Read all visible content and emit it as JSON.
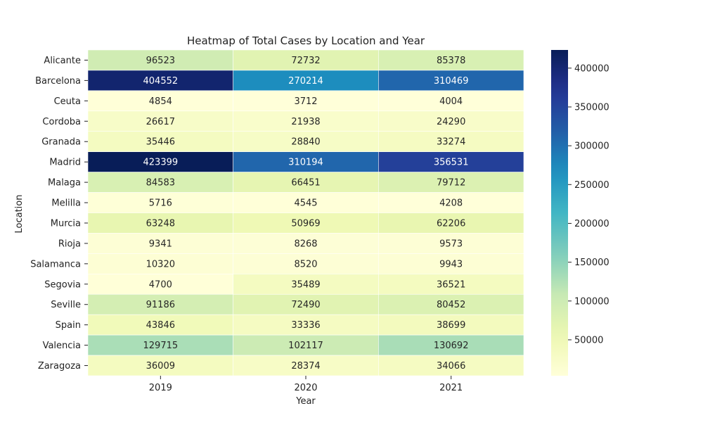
{
  "chart_data": {
    "type": "heatmap",
    "title": "Heatmap of Total Cases by Location and Year",
    "xlabel": "Year",
    "ylabel": "Location",
    "x_categories": [
      "2019",
      "2020",
      "2021"
    ],
    "y_categories": [
      "Alicante",
      "Barcelona",
      "Ceuta",
      "Cordoba",
      "Granada",
      "Madrid",
      "Malaga",
      "Melilla",
      "Murcia",
      "Rioja",
      "Salamanca",
      "Segovia",
      "Seville",
      "Spain",
      "Valencia",
      "Zaragoza"
    ],
    "values": [
      [
        96523,
        72732,
        85378
      ],
      [
        404552,
        270214,
        310469
      ],
      [
        4854,
        3712,
        4004
      ],
      [
        26617,
        21938,
        24290
      ],
      [
        35446,
        28840,
        33274
      ],
      [
        423399,
        310194,
        356531
      ],
      [
        84583,
        66451,
        79712
      ],
      [
        5716,
        4545,
        4208
      ],
      [
        63248,
        50969,
        62206
      ],
      [
        9341,
        8268,
        9573
      ],
      [
        10320,
        8520,
        9943
      ],
      [
        4700,
        35489,
        36521
      ],
      [
        91186,
        72490,
        80452
      ],
      [
        43846,
        33336,
        38699
      ],
      [
        129715,
        102117,
        130692
      ],
      [
        36009,
        28374,
        34066
      ]
    ],
    "colormap": "YlGnBu",
    "color_range": [
      3712,
      423399
    ],
    "colorbar_ticks": [
      50000,
      100000,
      150000,
      200000,
      250000,
      300000,
      350000,
      400000
    ],
    "cell_labels": true,
    "grid": false,
    "legend": "colorbar-right"
  }
}
